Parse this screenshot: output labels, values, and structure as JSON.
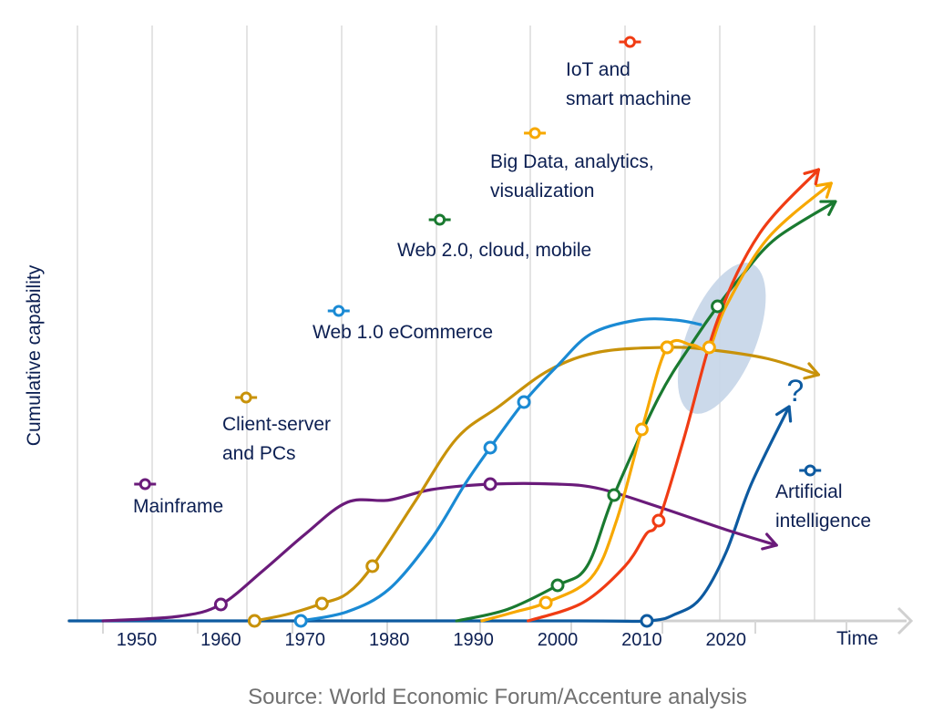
{
  "chart_data": {
    "type": "line",
    "title": "",
    "xlabel": "Time",
    "ylabel": "Cumulative capability",
    "source": "Source: World Economic Forum/Accenture analysis",
    "xlim": [
      1942,
      2038
    ],
    "ylim": [
      0,
      100
    ],
    "x_ticks": [
      1950,
      1960,
      1970,
      1980,
      1990,
      2000,
      2010,
      2020
    ],
    "x_tick_labels": [
      "1950",
      "1960",
      "1970",
      "1980",
      "1990",
      "2000",
      "2010",
      "2020"
    ],
    "grid": "vertical",
    "highlight": {
      "description": "shaded ellipse where Web 2.0, Big Data and IoT curves converge",
      "center": [
        2019.5,
        62
      ],
      "color": "#c5d5e8"
    },
    "annotation": {
      "text": "?",
      "x": 2028.5,
      "y": 51
    },
    "series": [
      {
        "name": "Mainframe",
        "label_lines": [
          "Mainframe"
        ],
        "color": "#6a1b7a",
        "arrow": true,
        "points": [
          [
            1946,
            0
          ],
          [
            1955,
            1
          ],
          [
            1960,
            3.6
          ],
          [
            1965,
            11
          ],
          [
            1970,
            19
          ],
          [
            1975,
            26
          ],
          [
            1980,
            26.5
          ],
          [
            1985,
            28.8
          ],
          [
            1992,
            30
          ],
          [
            2000,
            30
          ],
          [
            2005,
            29
          ],
          [
            2012,
            25
          ],
          [
            2020,
            20
          ],
          [
            2026,
            16.6
          ]
        ],
        "markers": [
          [
            1960,
            3.6
          ],
          [
            1992,
            30
          ]
        ],
        "legend_anchor": [
          1951,
          30
        ]
      },
      {
        "name": "Client-server and PCs",
        "label_lines": [
          "Client-server",
          "and PCs"
        ],
        "color": "#c8920a",
        "arrow": true,
        "points": [
          [
            1964,
            0
          ],
          [
            1968,
            1.5
          ],
          [
            1972,
            3.8
          ],
          [
            1975,
            6
          ],
          [
            1978,
            12
          ],
          [
            1983,
            26
          ],
          [
            1988,
            40
          ],
          [
            1993,
            47
          ],
          [
            1999,
            55
          ],
          [
            2005,
            59
          ],
          [
            2013,
            60
          ],
          [
            2018,
            59.5
          ],
          [
            2025,
            57.5
          ],
          [
            2031,
            54
          ]
        ],
        "markers": [
          [
            1964,
            0
          ],
          [
            1972,
            3.8
          ],
          [
            1978,
            12
          ],
          [
            2013,
            60
          ]
        ],
        "legend_anchor": [
          1963,
          49
        ]
      },
      {
        "name": "Web 1.0 eCommerce",
        "label_lines": [
          "Web 1.0 eCommerce"
        ],
        "color": "#1a8ad4",
        "arrow": false,
        "points": [
          [
            1969.5,
            0
          ],
          [
            1975,
            2
          ],
          [
            1980,
            7
          ],
          [
            1985,
            18
          ],
          [
            1989,
            30
          ],
          [
            1992,
            38
          ],
          [
            1996,
            48
          ],
          [
            2000,
            56
          ],
          [
            2004,
            63
          ],
          [
            2009.5,
            66
          ],
          [
            2014,
            66
          ],
          [
            2017,
            65
          ]
        ],
        "markers": [
          [
            1969.5,
            0
          ],
          [
            1992,
            38
          ],
          [
            1996,
            48
          ]
        ],
        "legend_anchor": [
          1974,
          68
        ]
      },
      {
        "name": "Web 2.0, cloud, mobile",
        "label_lines": [
          "Web 2.0, cloud, mobile"
        ],
        "color": "#1a7a30",
        "arrow": true,
        "points": [
          [
            1988,
            0
          ],
          [
            1994,
            2.5
          ],
          [
            2000,
            7.8
          ],
          [
            2003.5,
            12
          ],
          [
            2006.7,
            27.6
          ],
          [
            2012,
            49
          ],
          [
            2016,
            61
          ],
          [
            2019,
            69
          ],
          [
            2022,
            76
          ],
          [
            2026,
            84
          ],
          [
            2033,
            92
          ]
        ],
        "markers": [
          [
            2000,
            7.8
          ],
          [
            2006.7,
            27.6
          ],
          [
            2019,
            69
          ]
        ],
        "legend_anchor": [
          1986,
          88
        ]
      },
      {
        "name": "Big Data, analytics, visualization",
        "label_lines": [
          "Big Data, analytics,",
          "visualization"
        ],
        "color": "#f7a800",
        "arrow": true,
        "points": [
          [
            1991,
            0
          ],
          [
            1995,
            2
          ],
          [
            1998.6,
            4
          ],
          [
            2004,
            9.5
          ],
          [
            2007,
            22
          ],
          [
            2010,
            42
          ],
          [
            2013,
            60
          ],
          [
            2016,
            60.5
          ],
          [
            2018,
            60
          ],
          [
            2020,
            69
          ],
          [
            2025,
            84
          ],
          [
            2032.5,
            96
          ]
        ],
        "markers": [
          [
            1998.6,
            4
          ],
          [
            2010,
            42
          ],
          [
            2013,
            60
          ],
          [
            2018,
            60
          ]
        ],
        "legend_anchor": [
          1997.3,
          107
        ]
      },
      {
        "name": "IoT and smart machine",
        "label_lines": [
          "IoT and",
          "smart machine"
        ],
        "color": "#f03c14",
        "arrow": true,
        "points": [
          [
            1996.5,
            0
          ],
          [
            2003,
            4
          ],
          [
            2008,
            12
          ],
          [
            2010.5,
            19
          ],
          [
            2012,
            22
          ],
          [
            2015,
            40
          ],
          [
            2019,
            66
          ],
          [
            2024,
            85
          ],
          [
            2031,
            99
          ]
        ],
        "markers": [
          [
            2012,
            22
          ]
        ],
        "legend_anchor": [
          2008.6,
          127
        ]
      },
      {
        "name": "Artificial intelligence",
        "label_lines": [
          "Artificial",
          "intelligence"
        ],
        "color": "#0d5aa0",
        "arrow": true,
        "points": [
          [
            1942,
            0
          ],
          [
            2000,
            0
          ],
          [
            2010.6,
            0
          ],
          [
            2014,
            1.5
          ],
          [
            2017,
            5
          ],
          [
            2020,
            15
          ],
          [
            2023,
            30
          ],
          [
            2027.5,
            47
          ]
        ],
        "markers": [
          [
            2010.6,
            0
          ]
        ],
        "legend_anchor": [
          2030,
          33
        ]
      }
    ]
  }
}
